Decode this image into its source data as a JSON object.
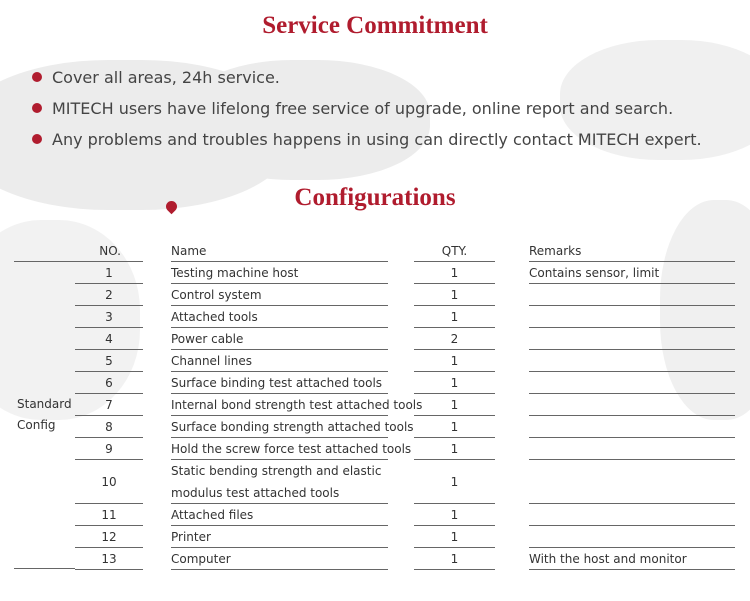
{
  "service": {
    "title": "Service Commitment",
    "bullets": [
      "Cover all areas, 24h service.",
      "MITECH users have lifelong free service of upgrade, online report and search.",
      "Any problems and troubles happens in using can directly contact MITECH expert."
    ]
  },
  "config": {
    "title": "Configurations",
    "group_label_1": "Standard",
    "group_label_2": "Config",
    "headers": {
      "no": "NO.",
      "name": "Name",
      "qty": "QTY.",
      "remarks": "Remarks"
    },
    "rows": [
      {
        "no": "1",
        "name": "Testing machine host",
        "qty": "1",
        "remarks": "Contains sensor, limit"
      },
      {
        "no": "2",
        "name": "Control system",
        "qty": "1",
        "remarks": ""
      },
      {
        "no": "3",
        "name": "Attached tools",
        "qty": "1",
        "remarks": ""
      },
      {
        "no": "4",
        "name": "Power cable",
        "qty": "2",
        "remarks": ""
      },
      {
        "no": "5",
        "name": "Channel lines",
        "qty": "1",
        "remarks": ""
      },
      {
        "no": "6",
        "name": "Surface binding test attached tools",
        "qty": "1",
        "remarks": ""
      },
      {
        "no": "7",
        "name": "Internal bond strength test attached tools",
        "qty": "1",
        "remarks": ""
      },
      {
        "no": "8",
        "name": "Surface bonding strength attached tools",
        "qty": "1",
        "remarks": ""
      },
      {
        "no": "9",
        "name": "Hold the screw force test attached tools",
        "qty": "1",
        "remarks": ""
      },
      {
        "no": "10",
        "name": "Static bending strength and elastic modulus test attached tools",
        "name_line1": "Static bending strength and elastic",
        "name_line2": "modulus test attached tools",
        "qty": "1",
        "remarks": ""
      },
      {
        "no": "11",
        "name": "Attached files",
        "qty": "1",
        "remarks": ""
      },
      {
        "no": "12",
        "name": "Printer",
        "qty": "1",
        "remarks": ""
      },
      {
        "no": "13",
        "name": "Computer",
        "qty": "1",
        "remarks": "With the host and monitor"
      }
    ]
  },
  "colors": {
    "accent": "#b01c2e",
    "map": "#ececec"
  }
}
